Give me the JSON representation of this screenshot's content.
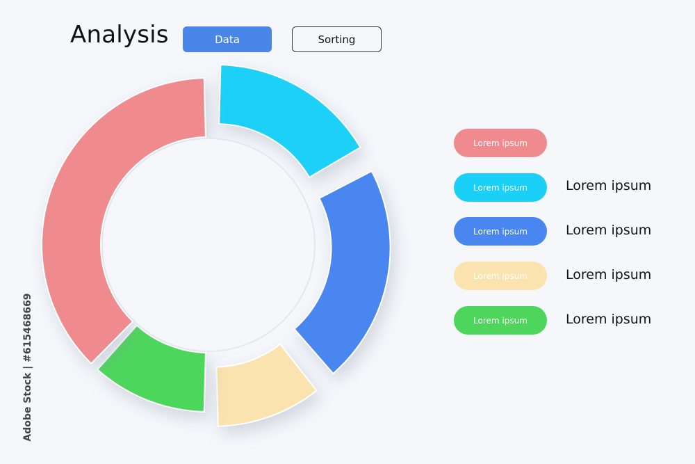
{
  "header": {
    "title": "Analysis",
    "data_button": "Data",
    "sorting_button": "Sorting"
  },
  "side_label": "Adobe Stock | #615468669",
  "legend": [
    {
      "pill": "Lorem ipsum",
      "text": "",
      "color": "#ef8a8e",
      "text_color": "#ffffff"
    },
    {
      "pill": "Lorem ipsum",
      "text": "Lorem ipsum",
      "color": "#1bd0f7",
      "text_color": "#ffffff"
    },
    {
      "pill": "Lorem ipsum",
      "text": "Lorem ipsum",
      "color": "#4a86ef",
      "text_color": "#ffffff"
    },
    {
      "pill": "Lorem ipsum",
      "text": "Lorem ipsum",
      "color": "#fbe3af",
      "text_color": "#ffffff"
    },
    {
      "pill": "Lorem ipsum",
      "text": "Lorem ipsum",
      "color": "#4ed65c",
      "text_color": "#ffffff"
    }
  ],
  "chart_data": {
    "type": "pie",
    "style": "donut",
    "values": [
      17,
      22,
      11,
      12,
      38
    ],
    "colors": [
      "#1bd0f7",
      "#4a86ef",
      "#fbe3af",
      "#4ed65c",
      "#ef8a8e"
    ],
    "exploded": [
      true,
      true,
      true,
      false,
      false
    ]
  }
}
